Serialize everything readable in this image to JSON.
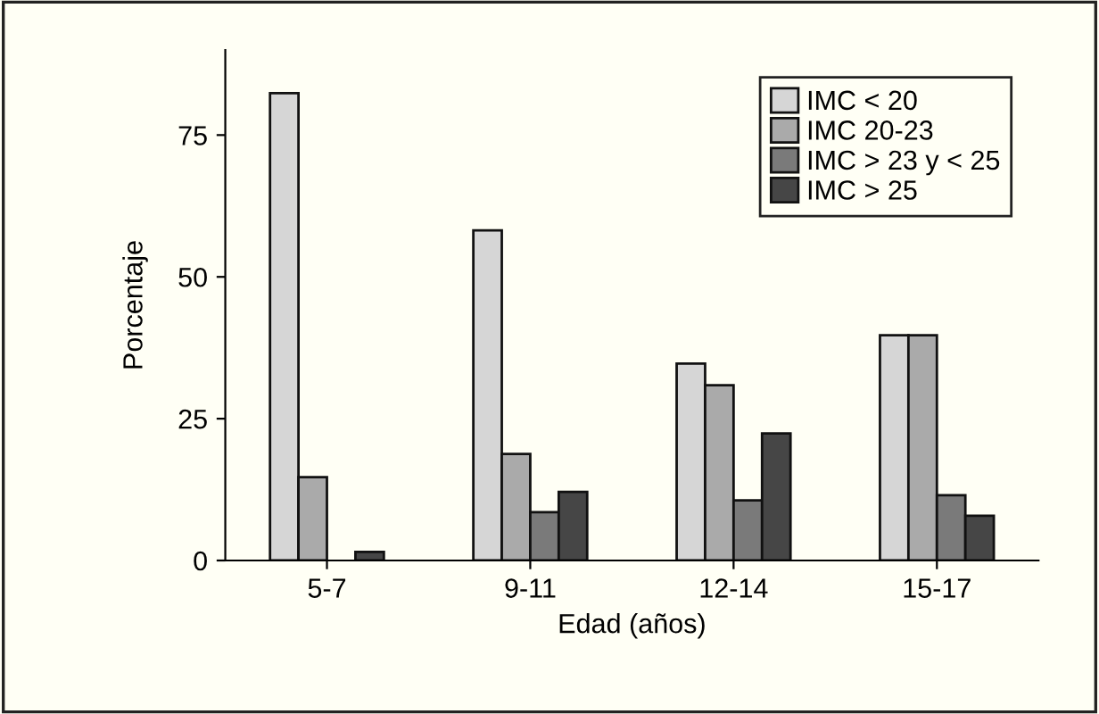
{
  "chart_data": {
    "type": "bar",
    "xlabel": "Edad (años)",
    "ylabel": "Porcentaje",
    "categories": [
      "5-7",
      "9-11",
      "12-14",
      "15-17"
    ],
    "series": [
      {
        "name": "IMC < 20",
        "color": "#d6d6d6",
        "values": [
          82.4,
          58.2,
          34.7,
          39.7
        ]
      },
      {
        "name": "IMC 20-23",
        "color": "#aaaaaa",
        "values": [
          14.7,
          18.8,
          30.9,
          39.7
        ]
      },
      {
        "name": "IMC > 23 y < 25",
        "color": "#7a7a7a",
        "values": [
          null,
          8.5,
          10.6,
          11.5
        ]
      },
      {
        "name": "IMC > 25",
        "color": "#464646",
        "values": [
          1.5,
          12.1,
          22.4,
          7.9
        ]
      }
    ],
    "ylim": [
      0,
      90
    ],
    "yticks": [
      0,
      25,
      50,
      75
    ],
    "grid": false,
    "legend": "top right"
  }
}
